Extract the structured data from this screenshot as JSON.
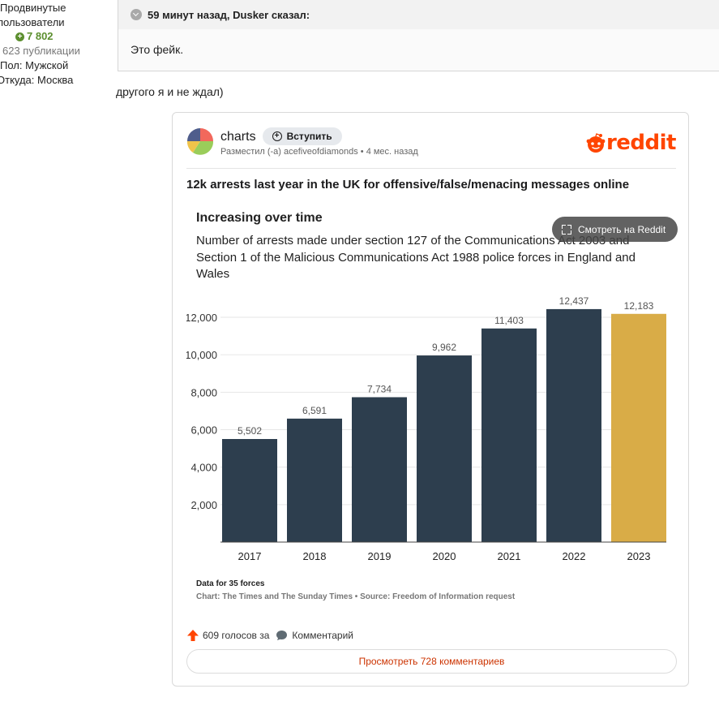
{
  "user": {
    "rank_line1": "Продвинутые",
    "rank_line2": "пользователи",
    "reputation": "7 802",
    "posts": "623 публикации",
    "gender": "Пол: Мужской",
    "from": "Откуда: Москва"
  },
  "quote": {
    "header": "59 минут назад, Dusker сказал:",
    "text": "Это фейк."
  },
  "post": {
    "text": "другого я и не ждал)"
  },
  "embed": {
    "subreddit": "charts",
    "join_label": "Вступить",
    "posted_by": "Разместил (-а) acefiveofdiamonds • 4 мес. назад",
    "brand": "reddit",
    "title": "12k arrests last year in the UK for offensive/false/menacing messages online",
    "view_on_reddit": "Смотреть на Reddit",
    "votes": "609 голосов за",
    "comments_label": "Комментарий",
    "view_comments": "Просмотреть 728 комментариев"
  },
  "chart_data": {
    "type": "bar",
    "title": "Increasing over time",
    "subtitle": "Number of arrests made under section 127 of the Communications Act 2003 and Section 1 of the Malicious Communications Act 1988 police forces in England and Wales",
    "categories": [
      "2017",
      "2018",
      "2019",
      "2020",
      "2021",
      "2022",
      "2023"
    ],
    "values": [
      5502,
      6591,
      7734,
      9962,
      11403,
      12437,
      12183
    ],
    "value_labels": [
      "5,502",
      "6,591",
      "7,734",
      "9,962",
      "11,403",
      "12,437",
      "12,183"
    ],
    "colors": [
      "#2d3e4e",
      "#2d3e4e",
      "#2d3e4e",
      "#2d3e4e",
      "#2d3e4e",
      "#2d3e4e",
      "#d9ac47"
    ],
    "yticks": [
      2000,
      4000,
      6000,
      8000,
      10000,
      12000
    ],
    "ytick_labels": [
      "2,000",
      "4,000",
      "6,000",
      "8,000",
      "10,000",
      "12,000"
    ],
    "ylim": [
      0,
      12800
    ],
    "grid": true,
    "note": "Data for 35 forces",
    "source": "Chart: The Times and The Sunday Times • Source: Freedom of Information request"
  }
}
